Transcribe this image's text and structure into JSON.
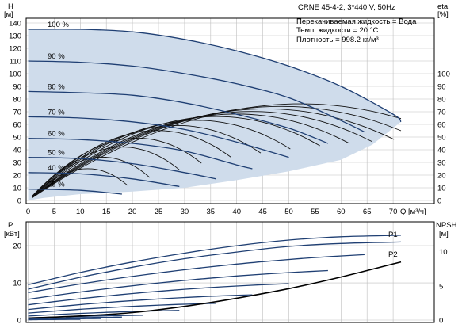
{
  "header": {
    "title": "CRNE 45-4-2, 3*440 V, 50Hz",
    "info": [
      "Перекачиваемая жидкость = Вода",
      "Темп. жидкости = 20 °C",
      "Плотность = 998.2 кг/м³"
    ]
  },
  "colors": {
    "envelope": "#cfdceb",
    "hq_curve": "#1f3f73",
    "efficiency_curve": "#111111",
    "grid": "#bfbfbf"
  },
  "chart_data": [
    {
      "id": "head",
      "type": "line",
      "ylabel_left": [
        "H",
        "[м]"
      ],
      "ylabel_right": [
        "eta",
        "[%]"
      ],
      "xlabel": "Q [м³/ч]",
      "xlim": [
        0,
        75
      ],
      "ylim": [
        0,
        150
      ],
      "y2lim": [
        0,
        150
      ],
      "grid": true,
      "x_ticks": [
        0,
        5,
        10,
        15,
        20,
        25,
        30,
        35,
        40,
        45,
        50,
        55,
        60,
        65,
        70
      ],
      "x_tick_labels": [
        "0",
        "5",
        "10",
        "15",
        "20",
        "25",
        "30",
        "35",
        "40",
        "45",
        "50",
        "55",
        "60",
        "65",
        "70"
      ],
      "y_ticks": [
        0,
        10,
        20,
        30,
        40,
        50,
        60,
        70,
        80,
        90,
        100,
        110,
        120,
        130,
        140
      ],
      "y_tick_labels": [
        "0",
        "10",
        "20",
        "30",
        "40",
        "50",
        "60",
        "70",
        "80",
        "90",
        "100",
        "110",
        "120",
        "130",
        "140"
      ],
      "y2_ticks": [
        0,
        10,
        20,
        30,
        40,
        50,
        60,
        70,
        80,
        90,
        100
      ],
      "y2_tick_labels": [
        "0",
        "10",
        "20",
        "30",
        "40",
        "50",
        "60",
        "70",
        "80",
        "90",
        "100"
      ],
      "envelope": {
        "upper": [
          [
            0,
            135
          ],
          [
            10,
            135
          ],
          [
            20,
            133
          ],
          [
            30,
            127
          ],
          [
            40,
            118
          ],
          [
            50,
            106
          ],
          [
            60,
            90
          ],
          [
            70,
            68
          ],
          [
            71.5,
            62
          ]
        ],
        "lower": [
          [
            0,
            0
          ],
          [
            3,
            2
          ],
          [
            10,
            5
          ],
          [
            20,
            7
          ],
          [
            30,
            10
          ],
          [
            40,
            16
          ],
          [
            50,
            23
          ],
          [
            60,
            32
          ],
          [
            66,
            44
          ],
          [
            71.5,
            62
          ]
        ]
      },
      "series": [
        {
          "name": "100 %",
          "q_max": 71.5,
          "values": [
            [
              0,
              135
            ],
            [
              10,
              135
            ],
            [
              20,
              133
            ],
            [
              30,
              127
            ],
            [
              40,
              118
            ],
            [
              50,
              106
            ],
            [
              60,
              90
            ],
            [
              70,
              68
            ],
            [
              71.5,
              62
            ]
          ]
        },
        {
          "name": "90 %",
          "q_max": 64.5,
          "values": [
            [
              0,
              110
            ],
            [
              10,
              109
            ],
            [
              20,
              106
            ],
            [
              30,
              100
            ],
            [
              40,
              92
            ],
            [
              50,
              81
            ],
            [
              60,
              63
            ],
            [
              64.5,
              54
            ]
          ]
        },
        {
          "name": "80 %",
          "q_max": 57.5,
          "values": [
            [
              0,
              86
            ],
            [
              10,
              85
            ],
            [
              20,
              83
            ],
            [
              30,
              77
            ],
            [
              40,
              68
            ],
            [
              50,
              57
            ],
            [
              57.5,
              45
            ]
          ]
        },
        {
          "name": "70 %",
          "q_max": 50,
          "values": [
            [
              0,
              66
            ],
            [
              10,
              65
            ],
            [
              20,
              62
            ],
            [
              30,
              56
            ],
            [
              40,
              46
            ],
            [
              50,
              34
            ]
          ]
        },
        {
          "name": "60 %",
          "q_max": 43,
          "values": [
            [
              0,
              49
            ],
            [
              10,
              48
            ],
            [
              20,
              45
            ],
            [
              30,
              39
            ],
            [
              40,
              28
            ],
            [
              43,
              25
            ]
          ]
        },
        {
          "name": "50 %",
          "q_max": 36,
          "values": [
            [
              0,
              34
            ],
            [
              10,
              33
            ],
            [
              20,
              29
            ],
            [
              30,
              22
            ],
            [
              36,
              17
            ]
          ]
        },
        {
          "name": "40 %",
          "q_max": 29,
          "values": [
            [
              0,
              22
            ],
            [
              10,
              21
            ],
            [
              20,
              17
            ],
            [
              29,
              11
            ]
          ]
        },
        {
          "name": "25 %",
          "q_max": 18,
          "values": [
            [
              0,
              9
            ],
            [
              10,
              8
            ],
            [
              18,
              5
            ]
          ]
        }
      ],
      "efficiency_curves_peak": [
        25,
        34,
        42,
        49,
        55,
        59,
        63,
        66,
        68,
        70,
        72,
        74,
        76
      ],
      "efficiency_curves_q_best": [
        12,
        15,
        19,
        22,
        26,
        30,
        34,
        38,
        42,
        45,
        48,
        51,
        55
      ]
    },
    {
      "id": "power",
      "type": "line",
      "ylabel_left": [
        "P",
        "[кВт]"
      ],
      "ylabel_right": [
        "NPSH",
        "[м]"
      ],
      "xlim": [
        0,
        75
      ],
      "ylim": [
        0,
        25
      ],
      "y2lim": [
        0,
        15
      ],
      "grid": true,
      "y_ticks": [
        0,
        10,
        20
      ],
      "y_tick_labels": [
        "0",
        "10",
        "20"
      ],
      "y2_ticks": [
        0,
        5,
        10
      ],
      "y2_tick_labels": [
        "0",
        "5",
        "10"
      ],
      "series_labels": [
        "P1",
        "P2"
      ],
      "p1_full_speed": [
        [
          0,
          9.5
        ],
        [
          10,
          12.8
        ],
        [
          20,
          15.6
        ],
        [
          30,
          18.0
        ],
        [
          40,
          20.0
        ],
        [
          50,
          21.5
        ],
        [
          60,
          22.4
        ],
        [
          71.5,
          22.8
        ]
      ],
      "p2_full_speed": [
        [
          0,
          8.3
        ],
        [
          10,
          11.5
        ],
        [
          20,
          14.2
        ],
        [
          30,
          16.5
        ],
        [
          40,
          18.3
        ],
        [
          50,
          19.8
        ],
        [
          60,
          20.6
        ],
        [
          71.5,
          21.0
        ]
      ],
      "power_curves_end": [
        [
          64.5,
          17.6
        ],
        [
          57.5,
          13.3
        ],
        [
          50,
          9.8
        ],
        [
          43,
          6.8
        ],
        [
          36,
          4.5
        ],
        [
          29,
          2.6
        ],
        [
          22,
          1.3
        ],
        [
          18,
          0.8
        ],
        [
          14,
          0.4
        ],
        [
          10,
          0.2
        ]
      ],
      "npsh": [
        [
          0,
          0.3
        ],
        [
          10,
          0.6
        ],
        [
          20,
          1.1
        ],
        [
          30,
          2.0
        ],
        [
          40,
          3.2
        ],
        [
          50,
          4.6
        ],
        [
          60,
          6.3
        ],
        [
          71.5,
          8.5
        ]
      ]
    }
  ]
}
